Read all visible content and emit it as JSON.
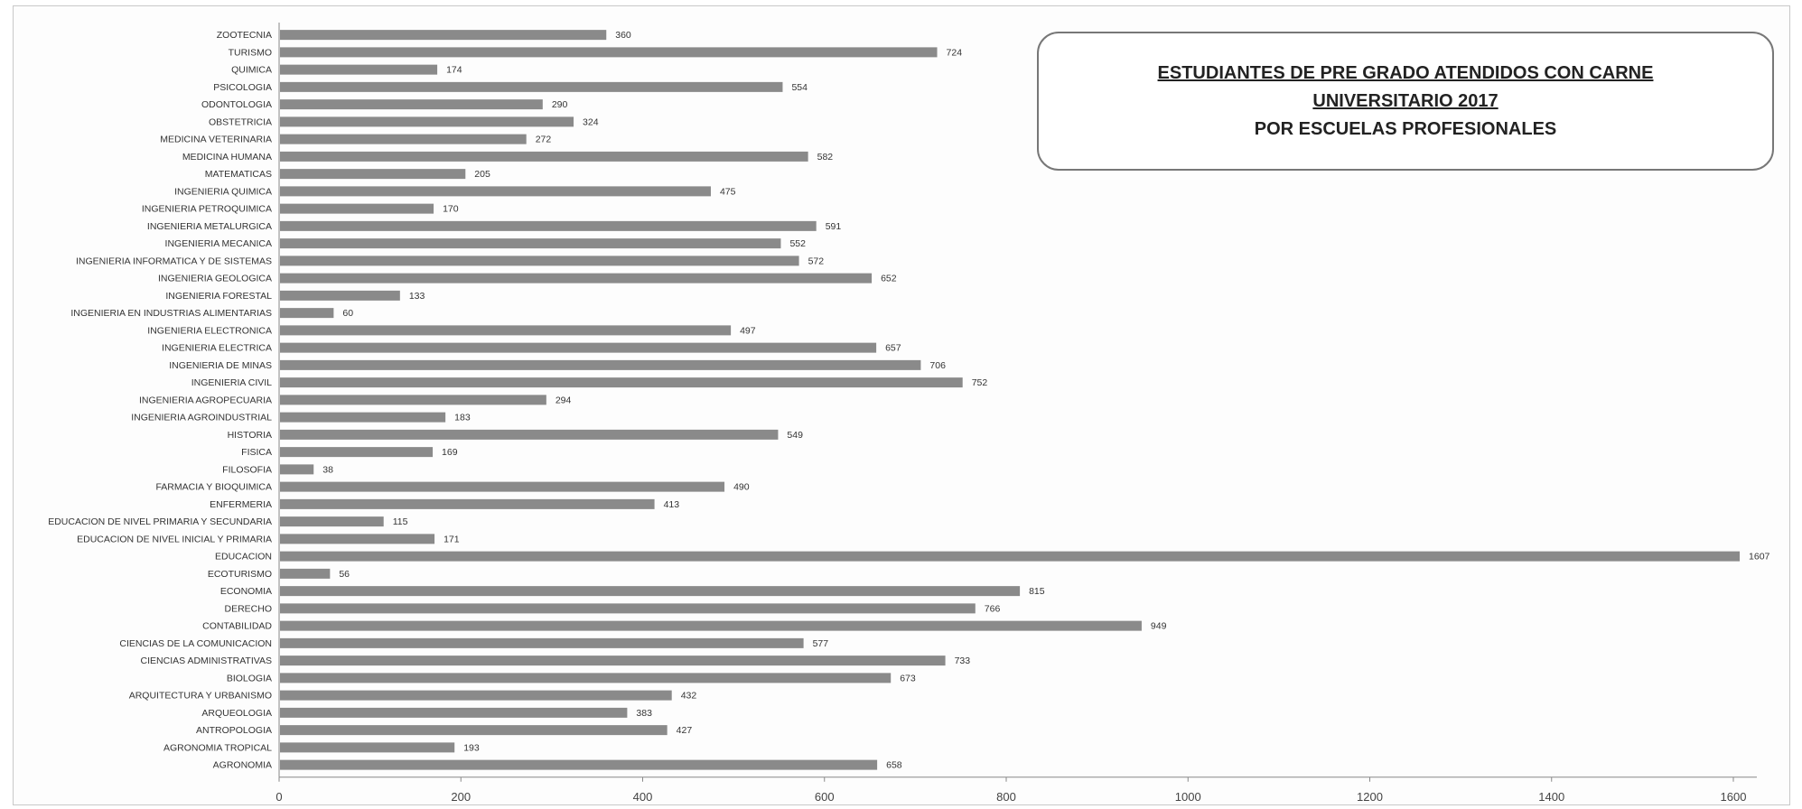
{
  "chart_data": {
    "type": "bar",
    "orientation": "horizontal",
    "title_lines": [
      "ESTUDIANTES DE PRE GRADO ATENDIDOS CON CARNE",
      "UNIVERSITARIO 2017",
      "POR ESCUELAS PROFESIONALES"
    ],
    "categories": [
      "ZOOTECNIA",
      "TURISMO",
      "QUIMICA",
      "PSICOLOGIA",
      "ODONTOLOGIA",
      "OBSTETRICIA",
      "MEDICINA VETERINARIA",
      "MEDICINA HUMANA",
      "MATEMATICAS",
      "INGENIERIA QUIMICA",
      "INGENIERIA PETROQUIMICA",
      "INGENIERIA METALURGICA",
      "INGENIERIA MECANICA",
      "INGENIERIA INFORMATICA Y DE SISTEMAS",
      "INGENIERIA GEOLOGICA",
      "INGENIERIA FORESTAL",
      "INGENIERIA EN INDUSTRIAS ALIMENTARIAS",
      "INGENIERIA ELECTRONICA",
      "INGENIERIA ELECTRICA",
      "INGENIERIA DE MINAS",
      "INGENIERIA CIVIL",
      "INGENIERIA AGROPECUARIA",
      "INGENIERIA AGROINDUSTRIAL",
      "HISTORIA",
      "FISICA",
      "FILOSOFIA",
      "FARMACIA Y BIOQUIMICA",
      "ENFERMERIA",
      "EDUCACION DE NIVEL PRIMARIA Y SECUNDARIA",
      "EDUCACION DE NIVEL INICIAL Y PRIMARIA",
      "EDUCACION",
      "ECOTURISMO",
      "ECONOMIA",
      "DERECHO",
      "CONTABILIDAD",
      "CIENCIAS DE LA COMUNICACION",
      "CIENCIAS ADMINISTRATIVAS",
      "BIOLOGIA",
      "ARQUITECTURA Y URBANISMO",
      "ARQUEOLOGIA",
      "ANTROPOLOGIA",
      "AGRONOMIA TROPICAL",
      "AGRONOMIA"
    ],
    "values": [
      360,
      724,
      174,
      554,
      290,
      324,
      272,
      582,
      205,
      475,
      170,
      591,
      552,
      572,
      652,
      133,
      60,
      497,
      657,
      706,
      752,
      294,
      183,
      549,
      169,
      38,
      490,
      413,
      115,
      171,
      1607,
      56,
      815,
      766,
      949,
      577,
      733,
      673,
      432,
      383,
      427,
      193,
      658
    ],
    "xlim": [
      0,
      1600
    ],
    "xticks": [
      0,
      200,
      400,
      600,
      800,
      1000,
      1200,
      1400,
      1600
    ],
    "bar_color": "#8a8a8a",
    "legend": "none",
    "grid": false
  }
}
